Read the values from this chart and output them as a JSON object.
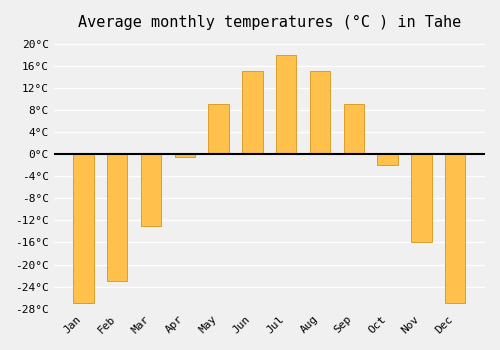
{
  "title": "Average monthly temperatures (°C ) in Tahe",
  "months": [
    "Jan",
    "Feb",
    "Mar",
    "Apr",
    "May",
    "Jun",
    "Jul",
    "Aug",
    "Sep",
    "Oct",
    "Nov",
    "Dec"
  ],
  "values": [
    -27,
    -23,
    -13,
    -0.5,
    9,
    15,
    18,
    15,
    9,
    -2,
    -16,
    -27
  ],
  "bar_color_pos": "#FFA500",
  "bar_color_neg": "#FFA500",
  "bar_edge_color": "#CC8800",
  "ylim": [
    -28,
    21
  ],
  "yticks": [
    -28,
    -24,
    -20,
    -16,
    -12,
    -8,
    -4,
    0,
    4,
    8,
    12,
    16,
    20
  ],
  "ytick_labels": [
    "-28°C",
    "-24°C",
    "-20°C",
    "-16°C",
    "-12°C",
    "-8°C",
    "-4°C",
    "0°C",
    "4°C",
    "8°C",
    "12°C",
    "16°C",
    "20°C"
  ],
  "background_color": "#f0f0f0",
  "grid_color": "#ffffff",
  "title_fontsize": 11,
  "tick_fontsize": 8,
  "zero_line_color": "#000000"
}
